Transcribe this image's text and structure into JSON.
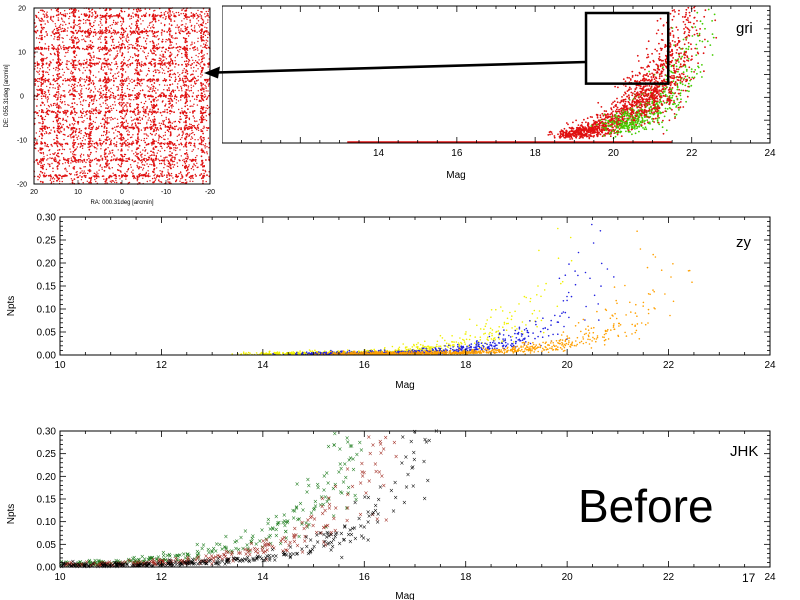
{
  "colors": {
    "red": "#e01010",
    "green": "#44cc00",
    "yellow": "#f0f000",
    "blue": "#2020e0",
    "orange": "#ffa000",
    "darkgreen": "#1a7a1a",
    "brown": "#a02a20",
    "black": "#000000"
  },
  "slide": {
    "before_label": "Before",
    "page_number": "17"
  },
  "chart_data": [
    {
      "id": "gri",
      "type": "scatter",
      "band_label": "gri",
      "xlabel": "Mag",
      "ylabel": "",
      "xlim": [
        10,
        24
      ],
      "ylim": [
        0,
        0.3
      ],
      "x_ticks": [
        "14",
        "16",
        "18",
        "20",
        "22",
        "24"
      ],
      "y_ticks": [],
      "grid": false,
      "series_colors": [
        "red",
        "green"
      ],
      "curves": [
        {
          "color": "red",
          "x0": 18.8,
          "x1": 21.9,
          "k": 0.95,
          "mag_floor": 18.8,
          "density": 900
        },
        {
          "color": "green",
          "x0": 20.0,
          "x1": 22.5,
          "k": 0.9,
          "mag_floor": 19.5,
          "density": 500
        },
        {
          "color": "red",
          "x0": 20.5,
          "x1": 22.2,
          "k": 0.8,
          "mag_floor": 20.2,
          "density": 600
        }
      ],
      "zoom_box": {
        "xlim": [
          19.3,
          21.4
        ],
        "ylim": [
          0.13,
          0.3
        ]
      }
    },
    {
      "id": "inset",
      "type": "scatter",
      "xlabel": "RA: 000.31deg [arcmin]",
      "ylabel": "DE: 055.31deg [arcmin]",
      "xlim": [
        20,
        -20
      ],
      "ylim": [
        -20,
        20
      ],
      "x_ticks": [
        "20",
        "10",
        "0",
        "-10",
        "-20"
      ],
      "y_ticks": [
        "-20",
        "-10",
        "0",
        "10",
        "20"
      ],
      "grid_stripes": 11
    },
    {
      "id": "zy",
      "type": "scatter",
      "band_label": "zy",
      "xlabel": "Mag",
      "ylabel": "Npts",
      "xlim": [
        10,
        24
      ],
      "ylim": [
        0,
        0.3
      ],
      "x_ticks": [
        "10",
        "12",
        "14",
        "16",
        "18",
        "20",
        "22",
        "24"
      ],
      "y_ticks": [
        "0.00",
        "0.05",
        "0.10",
        "0.15",
        "0.20",
        "0.25",
        "0.30"
      ],
      "curves": [
        {
          "color": "yellow",
          "x0": 14.0,
          "x1": 20.2,
          "k": 1.1,
          "density": 700
        },
        {
          "color": "blue",
          "x0": 15.0,
          "x1": 21.0,
          "k": 1.1,
          "density": 700
        },
        {
          "color": "orange",
          "x0": 15.5,
          "x1": 22.5,
          "k": 1.0,
          "density": 900
        }
      ]
    },
    {
      "id": "jhk",
      "type": "scatter",
      "band_label": "JHK",
      "xlabel": "Mag",
      "ylabel": "Npts",
      "xlim": [
        10,
        24
      ],
      "ylim": [
        0,
        0.3
      ],
      "x_ticks": [
        "10",
        "12",
        "14",
        "16",
        "18",
        "20",
        "22",
        "24"
      ],
      "y_ticks": [
        "0.00",
        "0.05",
        "0.10",
        "0.15",
        "0.20",
        "0.25",
        "0.30"
      ],
      "curves": [
        {
          "color": "darkgreen",
          "x0": 10.0,
          "x1": 16.0,
          "k": 0.75,
          "density": 260
        },
        {
          "color": "brown",
          "x0": 10.0,
          "x1": 16.6,
          "k": 0.8,
          "density": 260
        },
        {
          "color": "black",
          "x0": 10.0,
          "x1": 17.4,
          "k": 0.85,
          "density": 300
        }
      ]
    }
  ]
}
